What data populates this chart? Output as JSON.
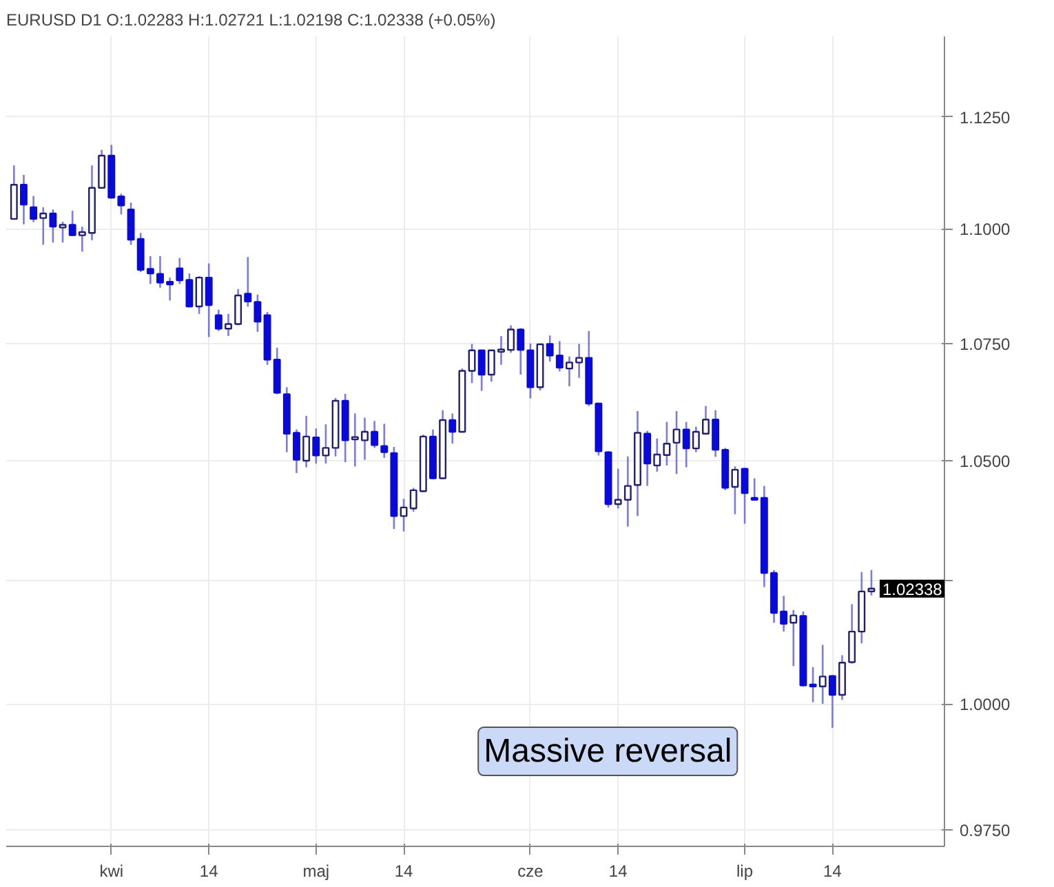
{
  "chart_data": {
    "type": "candlestick",
    "title": "EURUSD  D1  O:1.02283  H:1.02721  L:1.02198  C:1.02338  (+0.05%)",
    "categories": [
      null,
      null,
      null,
      null,
      null,
      null,
      null,
      null,
      null,
      null,
      "kwi",
      null,
      null,
      null,
      null,
      null,
      null,
      null,
      null,
      null,
      "14",
      null,
      null,
      null,
      null,
      null,
      null,
      null,
      null,
      null,
      null,
      "maj",
      null,
      null,
      null,
      null,
      null,
      null,
      null,
      null,
      "14",
      null,
      null,
      null,
      null,
      null,
      null,
      null,
      null,
      null,
      null,
      null,
      null,
      "cze",
      null,
      null,
      null,
      null,
      null,
      null,
      null,
      null,
      "14",
      null,
      null,
      null,
      null,
      null,
      null,
      null,
      null,
      null,
      null,
      null,
      null,
      "lip",
      null,
      null,
      null,
      null,
      null,
      null,
      null,
      null,
      "14",
      null,
      null,
      null,
      null
    ],
    "ohlc": [
      [
        1.1022,
        1.1141,
        1.102,
        1.1098
      ],
      [
        1.1098,
        1.112,
        1.101,
        1.1054
      ],
      [
        1.1048,
        1.1073,
        1.1015,
        1.1022
      ],
      [
        1.1024,
        1.1048,
        1.0965,
        1.1034
      ],
      [
        1.1034,
        1.1043,
        1.097,
        1.1005
      ],
      [
        1.1003,
        1.1016,
        1.097,
        1.1009
      ],
      [
        1.1009,
        1.104,
        1.0985,
        1.0986
      ],
      [
        1.0986,
        1.1005,
        1.095,
        1.0993
      ],
      [
        1.0991,
        1.1141,
        1.0975,
        1.1091
      ],
      [
        1.1091,
        1.1176,
        1.1089,
        1.1163
      ],
      [
        1.1163,
        1.1187,
        1.1067,
        1.1069
      ],
      [
        1.1072,
        1.1078,
        1.1032,
        1.1052
      ],
      [
        1.1043,
        1.1058,
        1.0965,
        1.0976
      ],
      [
        1.0978,
        1.0991,
        1.0905,
        1.091
      ],
      [
        1.0912,
        1.094,
        1.0879,
        1.0902
      ],
      [
        1.0901,
        1.094,
        1.0871,
        1.0882
      ],
      [
        1.0884,
        1.0893,
        1.0843,
        1.0878
      ],
      [
        1.0913,
        1.0936,
        1.0879,
        1.0887
      ],
      [
        1.0888,
        1.0902,
        1.0828,
        1.083
      ],
      [
        1.083,
        1.0896,
        1.0814,
        1.0893
      ],
      [
        1.0893,
        1.0924,
        1.0764,
        1.0833
      ],
      [
        1.0811,
        1.0823,
        1.0777,
        1.0782
      ],
      [
        1.0782,
        1.0814,
        1.0766,
        1.0792
      ],
      [
        1.0792,
        1.0868,
        1.0789,
        1.0854
      ],
      [
        1.0858,
        1.0938,
        1.083,
        1.0841
      ],
      [
        1.084,
        1.0856,
        1.0775,
        1.0797
      ],
      [
        1.0811,
        1.0818,
        1.0704,
        1.0715
      ],
      [
        1.0715,
        1.0741,
        1.0641,
        1.0644
      ],
      [
        1.0641,
        1.0656,
        1.0518,
        1.0557
      ],
      [
        1.0559,
        1.0566,
        1.0474,
        1.0502
      ],
      [
        1.05,
        1.0595,
        1.0486,
        1.0551
      ],
      [
        1.0549,
        1.0568,
        1.0494,
        1.0511
      ],
      [
        1.0511,
        1.0577,
        1.0494,
        1.0527
      ],
      [
        1.0527,
        1.0633,
        1.0509,
        1.0627
      ],
      [
        1.0627,
        1.0642,
        1.0497,
        1.0543
      ],
      [
        1.0545,
        1.06,
        1.0488,
        1.055
      ],
      [
        1.0543,
        1.0591,
        1.0502,
        1.0561
      ],
      [
        1.0561,
        1.0584,
        1.0527,
        1.0533
      ],
      [
        1.0531,
        1.0578,
        1.0506,
        1.0518
      ],
      [
        1.0516,
        1.0529,
        1.0357,
        1.0384
      ],
      [
        1.0384,
        1.042,
        1.0352,
        1.0402
      ],
      [
        1.04,
        1.0443,
        1.0393,
        1.0438
      ],
      [
        1.0436,
        1.0555,
        1.0434,
        1.0551
      ],
      [
        1.0551,
        1.0566,
        1.0461,
        1.0463
      ],
      [
        1.0463,
        1.0607,
        1.0461,
        1.0586
      ],
      [
        1.0586,
        1.06,
        1.0536,
        1.0561
      ],
      [
        1.0561,
        1.0696,
        1.0559,
        1.0691
      ],
      [
        1.0691,
        1.0749,
        1.0665,
        1.0735
      ],
      [
        1.0735,
        1.0736,
        1.0648,
        1.0683
      ],
      [
        1.0683,
        1.0736,
        1.0668,
        1.0735
      ],
      [
        1.0732,
        1.0766,
        1.0704,
        1.0737
      ],
      [
        1.0736,
        1.0789,
        1.073,
        1.078
      ],
      [
        1.078,
        1.0783,
        1.0683,
        1.0736
      ],
      [
        1.0735,
        1.075,
        1.0632,
        1.0656
      ],
      [
        1.0656,
        1.075,
        1.0649,
        1.0748
      ],
      [
        1.0749,
        1.0767,
        1.0711,
        1.0724
      ],
      [
        1.0724,
        1.0755,
        1.069,
        1.0698
      ],
      [
        1.0696,
        1.0722,
        1.0658,
        1.0709
      ],
      [
        1.0709,
        1.0749,
        1.0676,
        1.0719
      ],
      [
        1.0719,
        1.0777,
        1.0616,
        1.0621
      ],
      [
        1.0621,
        1.0623,
        1.0511,
        1.052
      ],
      [
        1.0518,
        1.052,
        1.0402,
        1.0409
      ],
      [
        1.0409,
        1.0483,
        1.04,
        1.0418
      ],
      [
        1.0418,
        1.0509,
        1.0362,
        1.0447
      ],
      [
        1.0449,
        1.0605,
        1.0384,
        1.0559
      ],
      [
        1.0557,
        1.0563,
        1.0447,
        1.0494
      ],
      [
        1.049,
        1.0547,
        1.0477,
        1.0513
      ],
      [
        1.0512,
        1.0582,
        1.049,
        1.0536
      ],
      [
        1.0538,
        1.0605,
        1.0472,
        1.0566
      ],
      [
        1.0566,
        1.0582,
        1.0486,
        1.0526
      ],
      [
        1.0526,
        1.0572,
        1.0518,
        1.0561
      ],
      [
        1.0557,
        1.0616,
        1.0555,
        1.0587
      ],
      [
        1.0587,
        1.0607,
        1.0508,
        1.0523
      ],
      [
        1.0523,
        1.0527,
        1.0438,
        1.0443
      ],
      [
        1.0445,
        1.0488,
        1.0388,
        1.0481
      ],
      [
        1.0483,
        1.0485,
        1.0368,
        1.0432
      ],
      [
        1.0422,
        1.0463,
        1.0417,
        1.0418
      ],
      [
        1.0422,
        1.0447,
        1.0237,
        1.0266
      ],
      [
        1.0266,
        1.0272,
        1.0164,
        1.0184
      ],
      [
        1.0187,
        1.0219,
        1.0146,
        1.0162
      ],
      [
        1.0164,
        1.019,
        1.0076,
        1.0179
      ],
      [
        1.0178,
        1.0187,
        1.0035,
        1.0037
      ],
      [
        1.0039,
        1.0074,
        1.0003,
        1.0035
      ],
      [
        1.0035,
        1.0119,
        1.0,
        1.0055
      ],
      [
        1.0056,
        1.0058,
        0.9952,
        1.0018
      ],
      [
        1.0018,
        1.0098,
        1.0008,
        1.0083
      ],
      [
        1.0084,
        1.0202,
        1.0081,
        1.0146
      ],
      [
        1.0146,
        1.0268,
        1.0122,
        1.0228
      ],
      [
        1.02283,
        1.02721,
        1.02198,
        1.02338
      ]
    ],
    "colors": [
      "#ffffff",
      "#0a0ad8",
      "#0a0ad8",
      "#ffffff",
      "#0a0ad8",
      "#ffffff",
      "#0a0ad8",
      "#ffffff",
      "#ffffff",
      "#ffffff",
      "#0a0ad8",
      "#0a0ad8",
      "#0a0ad8",
      "#0a0ad8",
      "#0a0ad8",
      "#0a0ad8",
      "#0a0ad8",
      "#0a0ad8",
      "#0a0ad8",
      "#ffffff",
      "#0a0ad8",
      "#0a0ad8",
      "#ffffff",
      "#ffffff",
      "#0a0ad8",
      "#0a0ad8",
      "#0a0ad8",
      "#0a0ad8",
      "#0a0ad8",
      "#0a0ad8",
      "#ffffff",
      "#0a0ad8",
      "#ffffff",
      "#ffffff",
      "#0a0ad8",
      "#ffffff",
      "#ffffff",
      "#0a0ad8",
      "#0a0ad8",
      "#0a0ad8",
      "#ffffff",
      "#ffffff",
      "#ffffff",
      "#0a0ad8",
      "#ffffff",
      "#0a0ad8",
      "#ffffff",
      "#ffffff",
      "#0a0ad8",
      "#ffffff",
      "#ffffff",
      "#ffffff",
      "#0a0ad8",
      "#0a0ad8",
      "#ffffff",
      "#0a0ad8",
      "#0a0ad8",
      "#ffffff",
      "#ffffff",
      "#0a0ad8",
      "#0a0ad8",
      "#0a0ad8",
      "#ffffff",
      "#ffffff",
      "#ffffff",
      "#0a0ad8",
      "#ffffff",
      "#ffffff",
      "#ffffff",
      "#0a0ad8",
      "#ffffff",
      "#ffffff",
      "#0a0ad8",
      "#0a0ad8",
      "#ffffff",
      "#0a0ad8",
      "#0a0ad8",
      "#0a0ad8",
      "#0a0ad8",
      "#0a0ad8",
      "#ffffff",
      "#0a0ad8",
      "#0a0ad8",
      "#ffffff",
      "#0a0ad8",
      "#ffffff",
      "#ffffff",
      "#ffffff",
      "#ffffff"
    ],
    "ylim": [
      0.9718,
      1.1433
    ],
    "yticks": [
      {
        "value": 0.975,
        "label": "0.9750"
      },
      {
        "value": 1.0,
        "label": "1.0000"
      },
      {
        "value": 1.025,
        "label": null
      },
      {
        "value": 1.05,
        "label": "1.0500"
      },
      {
        "value": 1.075,
        "label": "1.0750"
      },
      {
        "value": 1.1,
        "label": "1.1000"
      },
      {
        "value": 1.125,
        "label": "1.1250"
      }
    ],
    "log": "y",
    "grid": true,
    "annotations": [
      "Massive reversal",
      "1.02338"
    ]
  }
}
